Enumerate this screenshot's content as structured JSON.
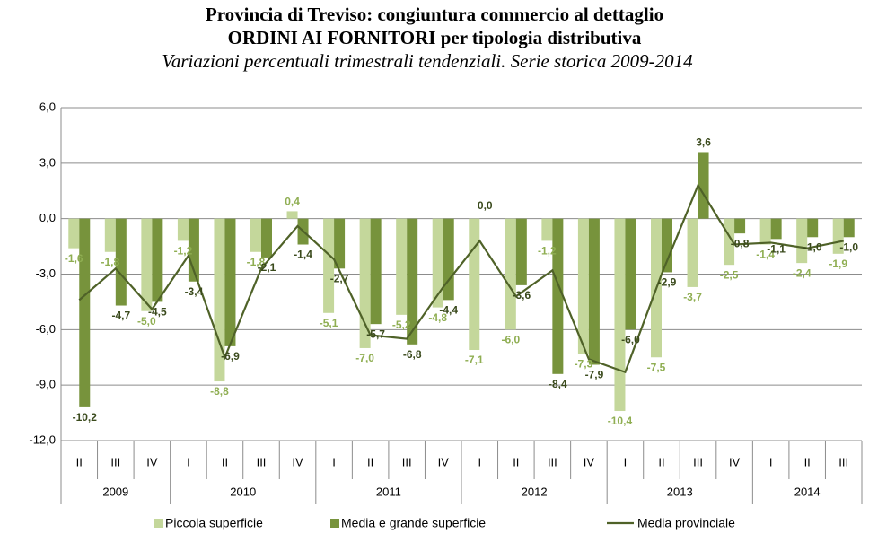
{
  "chart_data": {
    "type": "bar",
    "title_lines": [
      "Provincia di Treviso: congiuntura commercio al dettaglio",
      "ORDINI AI FORNITORI per tipologia distributiva"
    ],
    "subtitle": "Variazioni percentuali trimestrali tendenziali. Serie storica 2009-2014",
    "categories": [
      "II",
      "III",
      "IV",
      "I",
      "II",
      "III",
      "IV",
      "I",
      "II",
      "III",
      "IV",
      "I",
      "II",
      "III",
      "IV",
      "I",
      "II",
      "III",
      "IV",
      "I",
      "II",
      "III"
    ],
    "category_years": [
      "2009",
      "2009",
      "2009",
      "2010",
      "2010",
      "2010",
      "2010",
      "2011",
      "2011",
      "2011",
      "2011",
      "2012",
      "2012",
      "2012",
      "2012",
      "2013",
      "2013",
      "2013",
      "2013",
      "2014",
      "2014",
      "2014"
    ],
    "ylim": [
      -12,
      6
    ],
    "yticks": [
      {
        "value": 6,
        "label": "6,0"
      },
      {
        "value": 3,
        "label": "3,0"
      },
      {
        "value": 0,
        "label": "0,0"
      },
      {
        "value": -3,
        "label": "-3,0"
      },
      {
        "value": -6,
        "label": "-6,0"
      },
      {
        "value": -9,
        "label": "-9,0"
      },
      {
        "value": -12,
        "label": "-12,0"
      }
    ],
    "grid": true,
    "series": [
      {
        "name": "Piccola superficie",
        "type": "bar",
        "color": "#c4d79b",
        "label_color": "#8fae52",
        "values": [
          -1.6,
          -1.8,
          -5.0,
          -1.2,
          -8.8,
          -1.8,
          0.4,
          -5.1,
          -7.0,
          -5.2,
          -4.8,
          -7.1,
          -6.0,
          -1.2,
          -7.3,
          -10.4,
          -7.5,
          -3.7,
          -2.5,
          -1.4,
          -2.4,
          -1.9
        ],
        "value_labels": [
          "-1,6",
          "-1,8",
          "-5,0",
          "-1,2",
          "-8,8",
          "-1,8",
          "0,4",
          "-5,1",
          "-7,0",
          "-5,2",
          "-4,8",
          "-7,1",
          "-6,0",
          "-1,2",
          "-7,3",
          "-10,4",
          "-7,5",
          "-3,7",
          "-2,5",
          "-1,4",
          "-2,4",
          "-1,9"
        ]
      },
      {
        "name": "Media e grande superficie",
        "type": "bar",
        "color": "#77933c",
        "label_color": "#3a4a1c",
        "values": [
          -10.2,
          -4.7,
          -4.5,
          -3.4,
          -6.9,
          -2.1,
          -1.4,
          -2.7,
          -5.7,
          -6.8,
          -4.4,
          0.0,
          -3.6,
          -8.4,
          -7.9,
          -6.0,
          -2.9,
          3.6,
          -0.8,
          -1.1,
          -1.0,
          -1.0
        ],
        "value_labels": [
          "-10,2",
          "-4,7",
          "-4,5",
          "-3,4",
          "-6,9",
          "-2,1",
          "-1,4",
          "-2,7",
          "-5,7",
          "-6,8",
          "-4,4",
          "0,0",
          "-3,6",
          "-8,4",
          "-7,9",
          "-6,0",
          "-2,9",
          "3,6",
          "-0,8",
          "-1,1",
          "-1,0",
          "-1,0"
        ]
      },
      {
        "name": "Media provinciale",
        "type": "line",
        "color": "#4f6228",
        "values": [
          -4.4,
          -2.7,
          -4.9,
          -2.0,
          -7.5,
          -2.7,
          -0.4,
          -2.2,
          -6.3,
          -6.5,
          -3.7,
          -1.2,
          -4.2,
          -2.8,
          -7.6,
          -8.3,
          -3.0,
          1.8,
          -1.4,
          -1.3,
          -1.6,
          -1.2
        ]
      }
    ]
  }
}
